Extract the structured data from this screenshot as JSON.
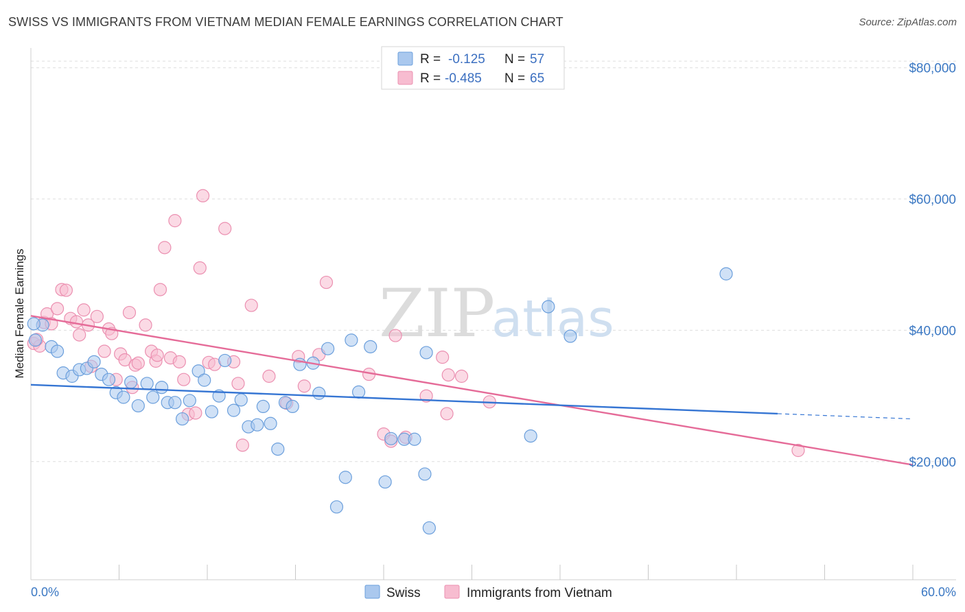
{
  "header": {
    "title": "SWISS VS IMMIGRANTS FROM VIETNAM MEDIAN FEMALE EARNINGS CORRELATION CHART",
    "source": "Source: ZipAtlas.com"
  },
  "watermark": {
    "part1": "ZIP",
    "part2": "atlas"
  },
  "legend_box": {
    "rows": [
      {
        "r_label": "R =",
        "r_value": "-0.125",
        "n_label": "N =",
        "n_value": "57"
      },
      {
        "r_label": "R =",
        "r_value": "-0.485",
        "n_label": "N =",
        "n_value": "65"
      }
    ]
  },
  "bottom_legend": {
    "items": [
      "Swiss",
      "Immigrants from Vietnam"
    ]
  },
  "colors": {
    "swiss_fill": "#aac8ee",
    "swiss_stroke": "#6b9fdc",
    "swiss_line": "#3575d3",
    "viet_fill": "#f7bcd0",
    "viet_stroke": "#eb8fb0",
    "viet_line": "#e56b98",
    "grid": "#dddddd",
    "tick_label": "#3b78c3"
  },
  "chart_data": {
    "type": "scatter",
    "ylabel": "Median Female Earnings",
    "xlabel": "",
    "x_tick_labels": [
      "0.0%",
      "60.0%"
    ],
    "y_tick_labels": [
      "$20,000",
      "$40,000",
      "$60,000",
      "$80,000"
    ],
    "y_tick_values": [
      20000,
      40000,
      60000,
      80000
    ],
    "xlim": [
      0,
      60
    ],
    "ylim": [
      2000,
      83000
    ],
    "series": [
      {
        "name": "Swiss",
        "trend": {
          "x0": 0,
          "y0": 31700,
          "x1": 50.8,
          "y1": 27300,
          "dash_to": 60,
          "dash_y": 26500
        },
        "points": [
          [
            0.3,
            38500
          ],
          [
            0.8,
            40800
          ],
          [
            1.4,
            37500
          ],
          [
            1.8,
            36800
          ],
          [
            2.2,
            33500
          ],
          [
            2.8,
            33000
          ],
          [
            3.3,
            34000
          ],
          [
            3.8,
            34200
          ],
          [
            4.3,
            35200
          ],
          [
            4.8,
            33300
          ],
          [
            5.3,
            32500
          ],
          [
            5.8,
            30500
          ],
          [
            6.3,
            29800
          ],
          [
            6.8,
            32100
          ],
          [
            7.3,
            28500
          ],
          [
            7.9,
            31900
          ],
          [
            8.3,
            29800
          ],
          [
            8.9,
            31300
          ],
          [
            9.3,
            29000
          ],
          [
            9.8,
            29000
          ],
          [
            10.3,
            26500
          ],
          [
            10.8,
            29300
          ],
          [
            11.4,
            33800
          ],
          [
            11.8,
            32400
          ],
          [
            12.3,
            27600
          ],
          [
            12.8,
            30000
          ],
          [
            13.2,
            35400
          ],
          [
            13.8,
            27800
          ],
          [
            14.3,
            29400
          ],
          [
            14.8,
            25300
          ],
          [
            15.4,
            25600
          ],
          [
            15.8,
            28400
          ],
          [
            16.3,
            25800
          ],
          [
            16.8,
            21900
          ],
          [
            17.3,
            29000
          ],
          [
            17.8,
            28400
          ],
          [
            18.3,
            34800
          ],
          [
            19.2,
            35000
          ],
          [
            19.6,
            30400
          ],
          [
            20.2,
            37200
          ],
          [
            20.8,
            13100
          ],
          [
            21.4,
            17600
          ],
          [
            21.8,
            38500
          ],
          [
            22.3,
            30600
          ],
          [
            23.1,
            37500
          ],
          [
            24.1,
            16900
          ],
          [
            24.5,
            23500
          ],
          [
            25.4,
            23400
          ],
          [
            26.1,
            23400
          ],
          [
            26.8,
            18100
          ],
          [
            26.9,
            36600
          ],
          [
            27.1,
            9900
          ],
          [
            34.0,
            23900
          ],
          [
            35.2,
            43600
          ],
          [
            36.7,
            39100
          ],
          [
            47.3,
            48600
          ],
          [
            0.2,
            41000
          ]
        ]
      },
      {
        "name": "Immigrants from Vietnam",
        "trend": {
          "x0": 0,
          "y0": 42200,
          "x1": 60,
          "y1": 19500
        },
        "points": [
          [
            0.2,
            38000
          ],
          [
            0.6,
            37600
          ],
          [
            0.9,
            41200
          ],
          [
            1.1,
            42500
          ],
          [
            1.4,
            41000
          ],
          [
            1.8,
            43300
          ],
          [
            2.1,
            46200
          ],
          [
            2.4,
            46100
          ],
          [
            2.7,
            41800
          ],
          [
            3.1,
            41300
          ],
          [
            3.3,
            39300
          ],
          [
            3.6,
            43100
          ],
          [
            3.9,
            40800
          ],
          [
            4.1,
            34500
          ],
          [
            4.5,
            42100
          ],
          [
            5.0,
            36800
          ],
          [
            5.3,
            40200
          ],
          [
            5.5,
            39500
          ],
          [
            5.8,
            32500
          ],
          [
            6.1,
            36400
          ],
          [
            6.4,
            35500
          ],
          [
            6.7,
            42700
          ],
          [
            7.1,
            34700
          ],
          [
            7.3,
            35000
          ],
          [
            7.8,
            40800
          ],
          [
            8.2,
            36800
          ],
          [
            8.5,
            35300
          ],
          [
            8.8,
            46200
          ],
          [
            9.1,
            52600
          ],
          [
            9.5,
            35800
          ],
          [
            9.8,
            56700
          ],
          [
            10.1,
            35200
          ],
          [
            10.4,
            32500
          ],
          [
            10.7,
            27200
          ],
          [
            11.2,
            27400
          ],
          [
            11.5,
            49500
          ],
          [
            11.7,
            60500
          ],
          [
            12.1,
            35100
          ],
          [
            12.5,
            34800
          ],
          [
            13.2,
            55500
          ],
          [
            13.8,
            35200
          ],
          [
            14.1,
            31900
          ],
          [
            14.4,
            22500
          ],
          [
            15.0,
            43800
          ],
          [
            16.2,
            33000
          ],
          [
            17.4,
            28900
          ],
          [
            18.2,
            36000
          ],
          [
            18.6,
            31500
          ],
          [
            19.6,
            36300
          ],
          [
            20.1,
            47300
          ],
          [
            23.0,
            33300
          ],
          [
            24.0,
            24200
          ],
          [
            24.5,
            23100
          ],
          [
            24.8,
            39200
          ],
          [
            25.5,
            23700
          ],
          [
            26.9,
            30000
          ],
          [
            28.0,
            35900
          ],
          [
            28.3,
            27300
          ],
          [
            28.4,
            33200
          ],
          [
            29.3,
            33000
          ],
          [
            31.2,
            29100
          ],
          [
            52.2,
            21700
          ],
          [
            0.4,
            38600
          ],
          [
            6.9,
            31300
          ],
          [
            8.6,
            36200
          ]
        ]
      }
    ],
    "grid": true,
    "legend": "top-center"
  }
}
